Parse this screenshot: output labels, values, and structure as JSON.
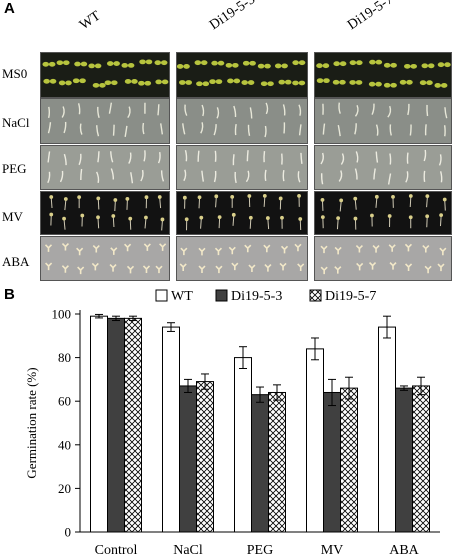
{
  "figure": {
    "panel_a_letter": "A",
    "panel_b_letter": "B",
    "genotypes": [
      "WT",
      "Di19-5-3",
      "Di19-5-7"
    ],
    "treatments": [
      "MS0",
      "NaCl",
      "PEG",
      "MV",
      "ABA"
    ],
    "photo_rows": [
      {
        "label": "MS0",
        "background": "#1a1d16",
        "seedling": "#b7c43e",
        "style": "leafy"
      },
      {
        "label": "NaCl",
        "background": "#8a8e88",
        "seedling": "#e7e7d8",
        "style": "curl"
      },
      {
        "label": "PEG",
        "background": "#9a9d96",
        "seedling": "#ecebe0",
        "style": "curl"
      },
      {
        "label": "MV",
        "background": "#121212",
        "seedling": "#d9cf8a",
        "style": "sprout"
      },
      {
        "label": "ABA",
        "background": "#a8a7a6",
        "seedling": "#f2e8c8",
        "style": "small"
      }
    ]
  },
  "chart_data": {
    "type": "bar",
    "categories": [
      "Control",
      "NaCl",
      "PEG",
      "MV",
      "ABA"
    ],
    "series": [
      {
        "name": "WT",
        "values": [
          99,
          94,
          80,
          84,
          94
        ],
        "errors": [
          0.8,
          2,
          5,
          5,
          5
        ],
        "fill": "#ffffff",
        "pattern": "none"
      },
      {
        "name": "Di19-5-3",
        "values": [
          98,
          67,
          63,
          64,
          66
        ],
        "errors": [
          1,
          3,
          3.5,
          6,
          1
        ],
        "fill": "#404040",
        "pattern": "solid"
      },
      {
        "name": "Di19-5-7",
        "values": [
          98,
          69,
          64,
          66,
          67
        ],
        "errors": [
          1,
          3.5,
          3.5,
          5,
          4
        ],
        "fill": "#ffffff",
        "pattern": "crosshatch"
      }
    ],
    "xlabel": "",
    "ylabel": "Germination rate (%)",
    "ylim": [
      0,
      100
    ],
    "yticks": [
      0,
      20,
      40,
      60,
      80,
      100
    ],
    "grid": false,
    "legend_position": "top-right"
  }
}
